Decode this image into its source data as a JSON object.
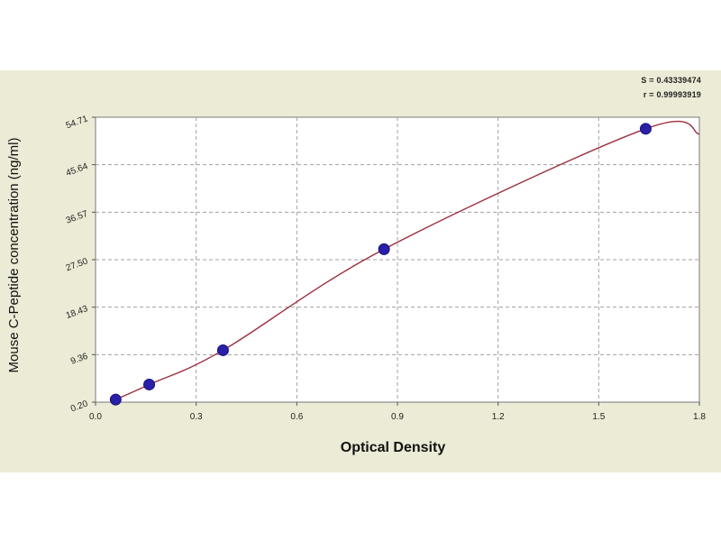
{
  "stats": {
    "s_text": "S = 0.43339474",
    "r_text": "r = 0.99993919"
  },
  "colors": {
    "background_panel": "#ecebd6",
    "plot_area": "#ffffff",
    "grid": "#a0a0a0",
    "curve": "#9b2f3e",
    "points": "#2a1fa8",
    "point_edge": "#1a137a"
  },
  "chart_data": {
    "type": "scatter",
    "title": "",
    "xlabel": "Optical Density",
    "ylabel": "Mouse C-Peptide concentration (ng/ml)",
    "xlim": [
      0.0,
      1.8
    ],
    "x_ticks": [
      "0.0",
      "0.3",
      "0.6",
      "0.9",
      "1.2",
      "1.5",
      "1.8"
    ],
    "y_ticks": [
      "0.20",
      "9.36",
      "18.43",
      "27.50",
      "36.57",
      "45.64",
      "54.71"
    ],
    "grid": true,
    "series": [
      {
        "points": [
          {
            "x": 0.06,
            "y": 0.69
          },
          {
            "x": 0.16,
            "y": 3.6
          },
          {
            "x": 0.38,
            "y": 10.2
          },
          {
            "x": 0.86,
            "y": 29.5
          },
          {
            "x": 1.64,
            "y": 52.5
          }
        ],
        "fit_curve": true
      }
    ]
  }
}
